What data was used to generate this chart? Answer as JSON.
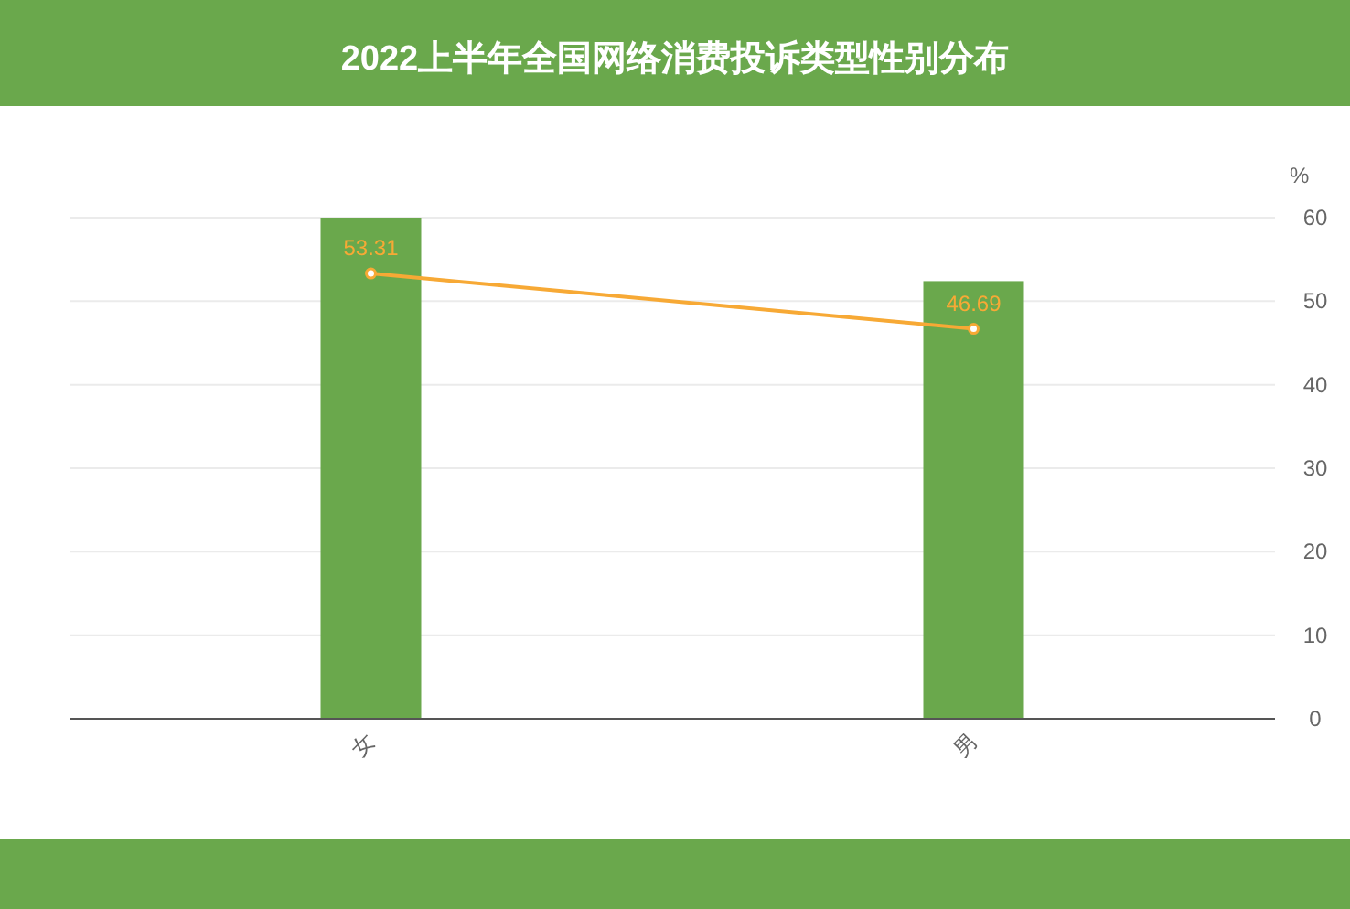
{
  "chart_data": {
    "type": "bar",
    "title": "2022上半年全国网络消费投诉类型性别分布",
    "categories": [
      "女",
      "男"
    ],
    "series": [
      {
        "color": "#6aa84c",
        "values": [
          60,
          52.4
        ]
      },
      {
        "type": "line",
        "color": "#f7a935",
        "values": [
          53.31,
          46.69
        ],
        "value_labels": [
          "53.31",
          "46.69"
        ]
      }
    ],
    "ylabel": "%",
    "ylim": [
      0,
      60
    ],
    "yticks": [
      0,
      10,
      20,
      30,
      40,
      50,
      60
    ],
    "grid": "y",
    "marker": "circle",
    "line_style": "solid"
  }
}
